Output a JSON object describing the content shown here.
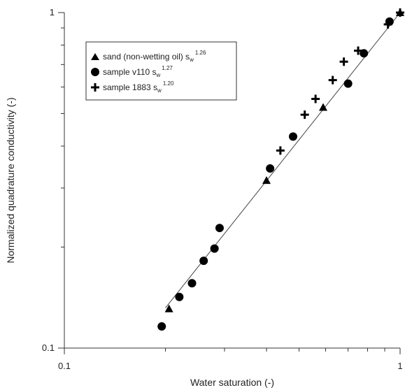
{
  "chart_data": {
    "type": "scatter",
    "xlabel": "Water saturation (-)",
    "ylabel": "Normalized quadrature conductivity (-)",
    "x_scale": "log",
    "y_scale": "log",
    "xlim": [
      0.1,
      1
    ],
    "ylim": [
      0.1,
      1
    ],
    "x_ticks": [
      {
        "value": 0.1,
        "label": "0.1"
      },
      {
        "value": 1,
        "label": "1"
      }
    ],
    "y_ticks": [
      {
        "value": 0.1,
        "label": "0.1"
      },
      {
        "value": 1,
        "label": "1"
      }
    ],
    "grid": false,
    "legend_position": "top-left",
    "series": [
      {
        "name": "sand (non-wetting oil) s",
        "sub": "w",
        "exponent": "1.26",
        "marker": "triangle",
        "points": [
          [
            0.205,
            0.131
          ],
          [
            0.4,
            0.316
          ],
          [
            0.59,
            0.522
          ],
          [
            1.0,
            1.0
          ]
        ]
      },
      {
        "name": "sample v110 s",
        "sub": "w",
        "exponent": "1.27",
        "marker": "circle",
        "points": [
          [
            0.195,
            0.116
          ],
          [
            0.22,
            0.142
          ],
          [
            0.24,
            0.156
          ],
          [
            0.26,
            0.182
          ],
          [
            0.28,
            0.198
          ],
          [
            0.29,
            0.228
          ],
          [
            0.41,
            0.343
          ],
          [
            0.48,
            0.427
          ],
          [
            0.7,
            0.614
          ],
          [
            0.78,
            0.756
          ],
          [
            0.93,
            0.94
          ]
        ]
      },
      {
        "name": "sample 1883 s",
        "sub": "w",
        "exponent": "1.20",
        "marker": "plus",
        "points": [
          [
            0.44,
            0.388
          ],
          [
            0.52,
            0.496
          ],
          [
            0.56,
            0.553
          ],
          [
            0.63,
            0.629
          ],
          [
            0.68,
            0.714
          ],
          [
            0.75,
            0.77
          ],
          [
            0.92,
            0.922
          ],
          [
            1.0,
            1.0
          ]
        ]
      }
    ],
    "fit_line": {
      "x": [
        0.2,
        1.0
      ],
      "y": [
        0.1317,
        1.0
      ]
    }
  }
}
